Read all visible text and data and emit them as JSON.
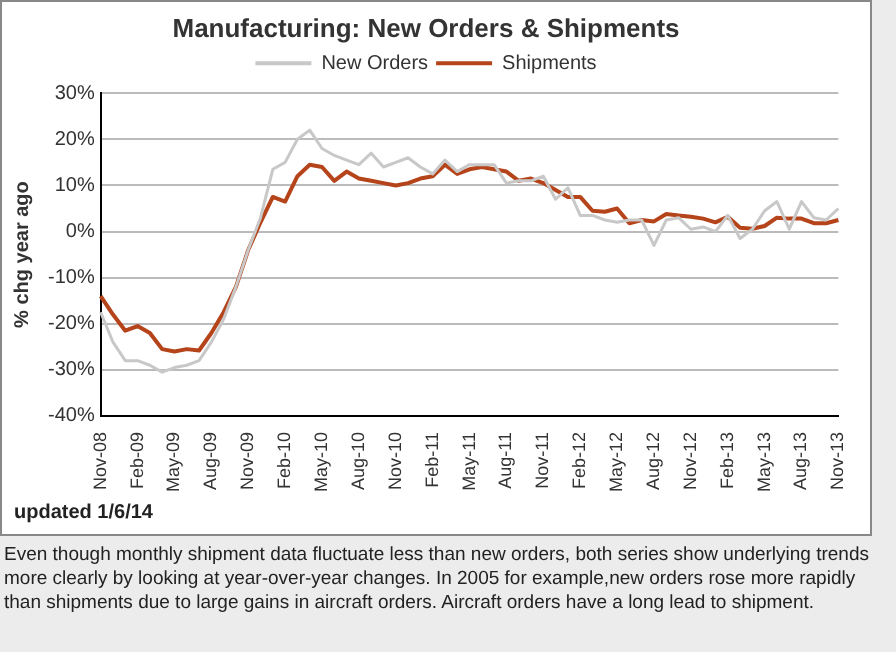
{
  "chart_data": {
    "type": "line",
    "title": "Manufacturing: New Orders & Shipments",
    "ylabel": "% chg year ago",
    "categories": [
      "Nov-08",
      null,
      null,
      "Feb-09",
      null,
      null,
      "May-09",
      null,
      null,
      "Aug-09",
      null,
      null,
      "Nov-09",
      null,
      null,
      "Feb-10",
      null,
      null,
      "May-10",
      null,
      null,
      "Aug-10",
      null,
      null,
      "Nov-10",
      null,
      null,
      "Feb-11",
      null,
      null,
      "May-11",
      null,
      null,
      "Aug-11",
      null,
      null,
      "Nov-11",
      null,
      null,
      "Feb-12",
      null,
      null,
      "May-12",
      null,
      null,
      "Aug-12",
      null,
      null,
      "Nov-12",
      null,
      null,
      "Feb-13",
      null,
      null,
      "May-13",
      null,
      null,
      "Aug-13",
      null,
      null,
      "Nov-13"
    ],
    "series": [
      {
        "name": "New Orders",
        "color": "#c8c8c8",
        "values": [
          -17.5,
          -24,
          -28,
          -28,
          -29,
          -30.5,
          -29.5,
          -29,
          -28,
          -24,
          -19,
          -12,
          -4,
          3,
          13.5,
          15,
          20,
          22,
          18,
          16.5,
          15.5,
          14.5,
          17,
          14,
          15,
          16,
          14,
          12.5,
          15.5,
          13,
          14.5,
          14.5,
          14.5,
          10.5,
          11,
          11,
          12,
          7,
          9.5,
          3.5,
          3.5,
          2.5,
          2,
          2.5,
          2.5,
          -3,
          2.5,
          3,
          0.5,
          1,
          0,
          3.5,
          -1.5,
          0.5,
          4.5,
          6.5,
          0.5,
          6.5,
          3,
          2.5,
          5
        ]
      },
      {
        "name": "Shipments",
        "color": "#b5441a",
        "values": [
          -14,
          -18,
          -21.5,
          -20.5,
          -22,
          -25.5,
          -26,
          -25.5,
          -25.8,
          -22,
          -17.5,
          -12,
          -4,
          2,
          7.5,
          6.5,
          12,
          14.5,
          14,
          11,
          13,
          11.5,
          11,
          10.5,
          10,
          10.5,
          11.5,
          12,
          14.5,
          12.5,
          13.5,
          14,
          13.5,
          13,
          11,
          11.5,
          10.5,
          9,
          7.5,
          7.5,
          4.5,
          4.3,
          5,
          1.8,
          2.5,
          2.2,
          3.8,
          3.5,
          3.2,
          2.8,
          2,
          3.2,
          0.8,
          0.6,
          1.2,
          3,
          2.8,
          2.8,
          1.8,
          1.8,
          2.5
        ]
      }
    ],
    "ylim": [
      -40,
      30
    ],
    "yticks": [
      {
        "value": -40,
        "label": "-40%"
      },
      {
        "value": -30,
        "label": "-30%"
      },
      {
        "value": -20,
        "label": "-20%"
      },
      {
        "value": -10,
        "label": "-10%"
      },
      {
        "value": 0,
        "label": "0%"
      },
      {
        "value": 10,
        "label": "10%"
      },
      {
        "value": 20,
        "label": "20%"
      },
      {
        "value": 30,
        "label": "30%"
      }
    ],
    "grid": "y",
    "legend": "top",
    "marker": "none",
    "line_style": "solid",
    "annotations": [
      "updated 1/6/14",
      "Even though monthly shipment data fluctuate less than new orders, both series show underlying trends more clearly by looking at year-over-year changes. In 2005 for example,new orders rose more rapidly than shipments due to large gains in aircraft orders. Aircraft orders have a long lead to shipment."
    ]
  }
}
